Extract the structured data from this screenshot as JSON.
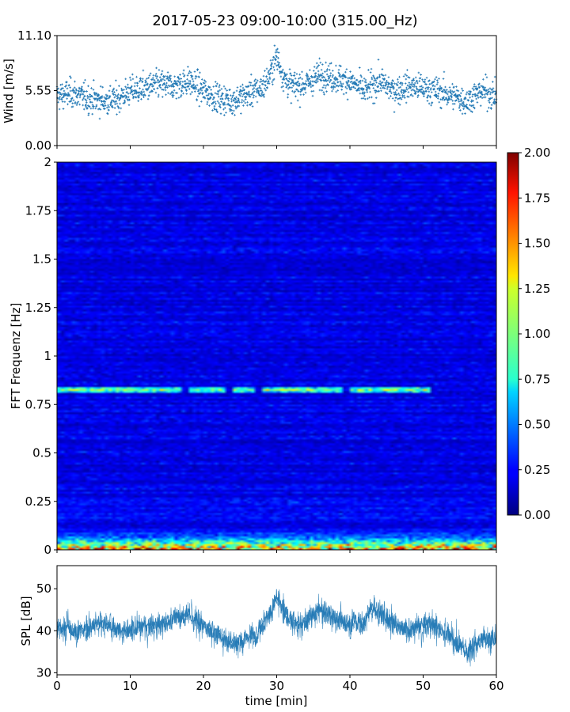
{
  "figure": {
    "title": "2017-05-23 09:00-10:00 (315.00_Hz)"
  },
  "chart_data": [
    {
      "id": "wind",
      "type": "scatter",
      "title": "",
      "xlabel": "",
      "ylabel": "Wind [m/s]",
      "xlim": [
        0,
        60
      ],
      "ylim": [
        0,
        11.1
      ],
      "yticks": [
        "0.00",
        "5.55",
        "11.10"
      ],
      "color": "#1f77b4",
      "marker": "+",
      "n_points": 1800,
      "profile": {
        "x": [
          0,
          2,
          4,
          6,
          8,
          10,
          12,
          14,
          16,
          18,
          20,
          22,
          24,
          26,
          28,
          29,
          30,
          31,
          32,
          34,
          36,
          38,
          40,
          42,
          44,
          46,
          48,
          50,
          52,
          54,
          56,
          58,
          60
        ],
        "mean": [
          5.0,
          5.3,
          4.8,
          4.5,
          4.6,
          5.5,
          5.8,
          6.2,
          6.0,
          6.5,
          5.5,
          4.8,
          4.5,
          5.2,
          5.8,
          7.0,
          9.0,
          6.8,
          6.0,
          6.2,
          7.2,
          6.8,
          6.5,
          5.5,
          6.5,
          5.5,
          6.0,
          5.8,
          5.5,
          5.0,
          4.5,
          5.5,
          5.0
        ],
        "spread": 1.0
      }
    },
    {
      "id": "spectrogram",
      "type": "heatmap",
      "title": "",
      "xlabel": "",
      "ylabel": "FFT Frequenz [Hz]",
      "xlim": [
        0,
        60
      ],
      "ylim": [
        0,
        2
      ],
      "yticks": [
        "0",
        "0.25",
        "0.5",
        "0.75",
        "1",
        "1.25",
        "1.5",
        "1.75",
        "2"
      ],
      "colormap": "jet",
      "colorbar": {
        "range": [
          0,
          2
        ],
        "ticks": [
          "0.00",
          "0.25",
          "0.50",
          "0.75",
          "1.00",
          "1.25",
          "1.50",
          "1.75",
          "2.00"
        ]
      },
      "n_time_bins": 120,
      "n_freq_bins": 200,
      "features": [
        {
          "label": "band near 0.81-0.84 Hz",
          "f_center": 0.825,
          "f_width": 0.012,
          "x_segments": [
            [
              0,
              17
            ],
            [
              18,
              23
            ],
            [
              24,
              27
            ],
            [
              28,
              39
            ],
            [
              40,
              51
            ]
          ],
          "value": 0.85
        },
        {
          "label": "low-frequency energy",
          "f_max": 0.15,
          "value_at_0": 1.6
        }
      ]
    },
    {
      "id": "spl",
      "type": "area",
      "title": "",
      "xlabel": "time [min]",
      "ylabel": "SPL [dB]",
      "xlim": [
        0,
        60
      ],
      "ylim": [
        29.5,
        55.5
      ],
      "yticks": [
        "30",
        "40",
        "50"
      ],
      "xticks": [
        "0",
        "10",
        "20",
        "30",
        "40",
        "50",
        "60"
      ],
      "color": "#1f77b4",
      "profile": {
        "x": [
          0,
          3,
          6,
          9,
          12,
          15,
          18,
          21,
          24,
          27,
          29,
          30,
          31,
          33,
          36,
          39,
          42,
          43,
          45,
          48,
          51,
          54,
          56,
          58,
          60
        ],
        "mean": [
          41,
          40,
          42,
          40,
          41,
          42,
          44,
          40,
          37,
          39,
          44,
          48,
          44,
          41,
          45,
          42,
          42,
          46,
          43,
          40,
          42,
          38,
          35,
          38,
          38
        ],
        "spread": 4
      }
    }
  ]
}
